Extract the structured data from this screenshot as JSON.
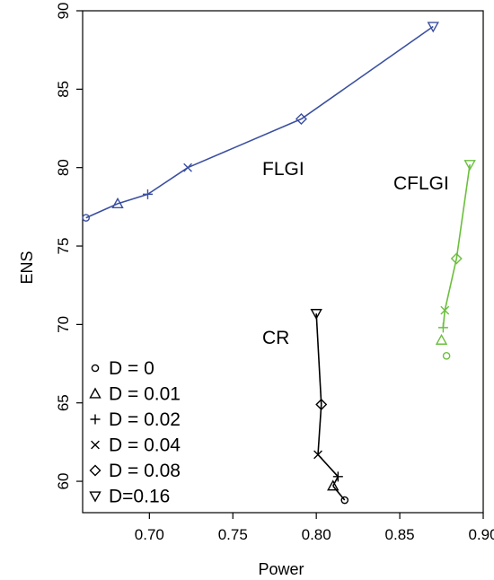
{
  "chart_data": {
    "type": "line",
    "title": "",
    "xlabel": "Power",
    "ylabel": "ENS",
    "xlim": [
      0.66,
      0.9
    ],
    "ylim": [
      58,
      90
    ],
    "x_ticks": [
      0.7,
      0.75,
      0.8,
      0.85,
      0.9
    ],
    "x_tick_labels": [
      "0.70",
      "0.75",
      "0.80",
      "0.85",
      "0.90"
    ],
    "y_ticks": [
      60,
      65,
      70,
      75,
      80,
      85,
      90
    ],
    "y_tick_labels": [
      "60",
      "65",
      "70",
      "75",
      "80",
      "85",
      "90"
    ],
    "grid": false,
    "legend_position": "bottom-left",
    "legend": [
      {
        "marker": "circle",
        "label": "D = 0"
      },
      {
        "marker": "triangle-up",
        "label": "D = 0.01"
      },
      {
        "marker": "plus",
        "label": "D = 0.02"
      },
      {
        "marker": "cross",
        "label": "D = 0.04"
      },
      {
        "marker": "diamond",
        "label": "D = 0.08"
      },
      {
        "marker": "triangle-down",
        "label": "D=0.16"
      }
    ],
    "series": [
      {
        "name": "FLGI",
        "color": "#3a4fa0",
        "connected": [
          true,
          true,
          true,
          true,
          true,
          true
        ],
        "points": [
          {
            "x": 0.662,
            "y": 76.8
          },
          {
            "x": 0.681,
            "y": 77.7
          },
          {
            "x": 0.699,
            "y": 78.3
          },
          {
            "x": 0.723,
            "y": 80.0
          },
          {
            "x": 0.791,
            "y": 83.1
          },
          {
            "x": 0.87,
            "y": 89.0
          }
        ]
      },
      {
        "name": "CFLGI",
        "color": "#6abf3c",
        "connected": [
          false,
          false,
          true,
          true,
          true,
          true
        ],
        "points": [
          {
            "x": 0.878,
            "y": 68.0
          },
          {
            "x": 0.875,
            "y": 69.0
          },
          {
            "x": 0.876,
            "y": 69.8
          },
          {
            "x": 0.877,
            "y": 70.9
          },
          {
            "x": 0.884,
            "y": 74.2
          },
          {
            "x": 0.892,
            "y": 80.2
          }
        ]
      },
      {
        "name": "CR",
        "color": "#000000",
        "connected": [
          true,
          true,
          true,
          true,
          true,
          true
        ],
        "points": [
          {
            "x": 0.817,
            "y": 58.8
          },
          {
            "x": 0.81,
            "y": 59.7
          },
          {
            "x": 0.813,
            "y": 60.3
          },
          {
            "x": 0.801,
            "y": 61.7
          },
          {
            "x": 0.803,
            "y": 64.9
          },
          {
            "x": 0.8,
            "y": 70.7
          }
        ]
      }
    ]
  }
}
